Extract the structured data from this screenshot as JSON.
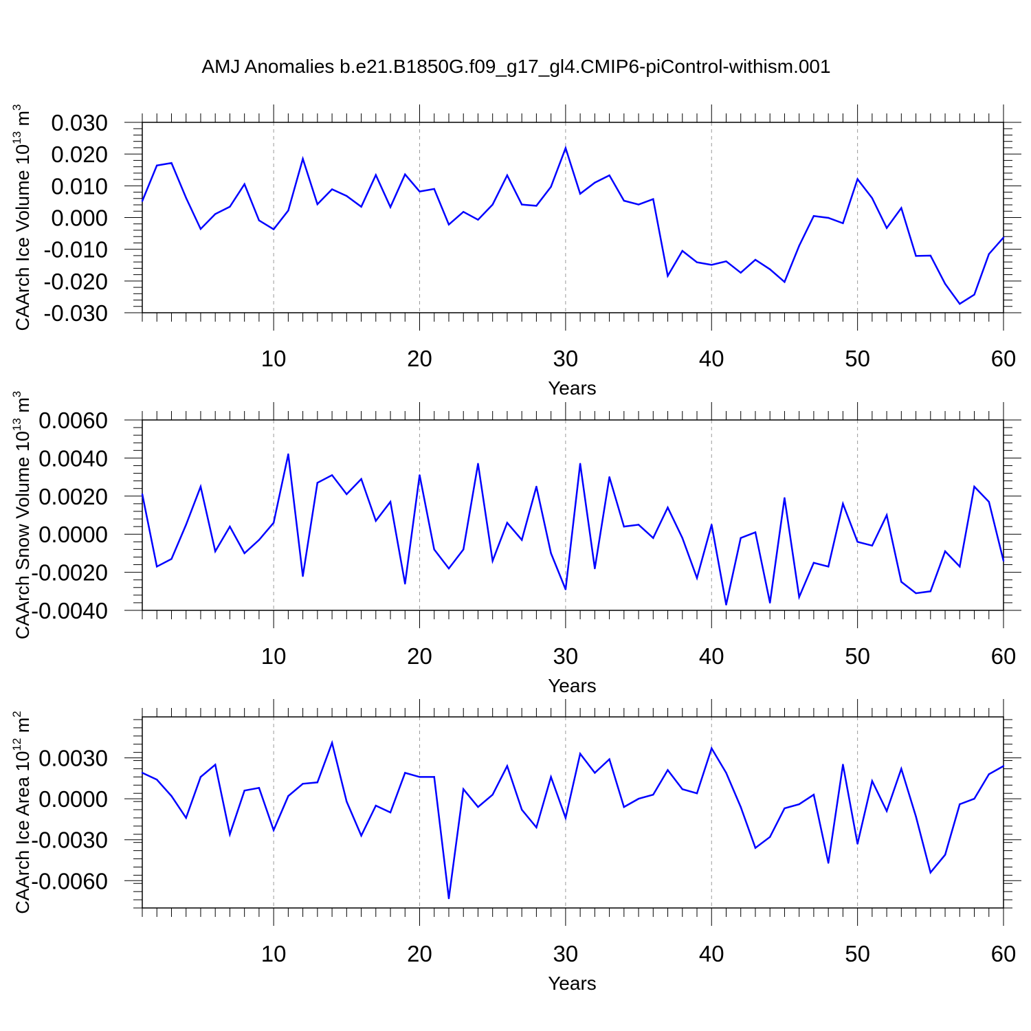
{
  "chart_data": {
    "title": "AMJ Anomalies b.e21.B1850G.f09_g17_gl4.CMIP6-piControl-withism.001",
    "line_color": "#0000ff",
    "panels": [
      {
        "type": "line",
        "ylabel": "CAArch Ice Volume",
        "ylabel_unit_base": "10",
        "ylabel_unit_exp": "13",
        "ylabel_unit_name": "m",
        "ylabel_unit_power": "3",
        "xlabel": "Years",
        "xlim": [
          1,
          60
        ],
        "ylim": [
          -0.03,
          0.03
        ],
        "x_ticks": [
          10,
          20,
          30,
          40,
          50,
          60
        ],
        "x_tick_labels": [
          "10",
          "20",
          "30",
          "40",
          "50",
          "60"
        ],
        "y_ticks": [
          0.03,
          0.02,
          0.01,
          0.0,
          -0.01,
          -0.02,
          -0.03
        ],
        "y_tick_labels": [
          "0.030",
          "0.020",
          "0.010",
          "0.000",
          "-0.010",
          "-0.020",
          "-0.030"
        ],
        "x": [
          1,
          2,
          3,
          4,
          5,
          6,
          7,
          8,
          9,
          10,
          11,
          12,
          13,
          14,
          15,
          16,
          17,
          18,
          19,
          20,
          21,
          22,
          23,
          24,
          25,
          26,
          27,
          28,
          29,
          30,
          31,
          32,
          33,
          34,
          35,
          36,
          37,
          38,
          39,
          40,
          41,
          42,
          43,
          44,
          45,
          46,
          47,
          48,
          49,
          50,
          51,
          52,
          53,
          54,
          55,
          56,
          57,
          58,
          59,
          60
        ],
        "values": [
          0.0052,
          0.0164,
          0.0172,
          0.0062,
          -0.0036,
          0.0011,
          0.0034,
          0.0105,
          -0.0009,
          -0.0037,
          0.0022,
          0.0185,
          0.0042,
          0.0089,
          0.0068,
          0.0034,
          0.0134,
          0.0033,
          0.0136,
          0.0082,
          0.009,
          -0.0022,
          0.0018,
          -0.0007,
          0.0041,
          0.0133,
          0.0041,
          0.0037,
          0.0097,
          0.0219,
          0.0075,
          0.011,
          0.0133,
          0.0053,
          0.0041,
          0.0058,
          -0.0184,
          -0.0105,
          -0.0141,
          -0.0149,
          -0.0138,
          -0.0174,
          -0.0133,
          -0.0163,
          -0.0203,
          -0.0089,
          0.0005,
          -0.0001,
          -0.0018,
          0.0121,
          0.0061,
          -0.0033,
          0.003,
          -0.0121,
          -0.012,
          -0.0209,
          -0.0272,
          -0.0243,
          -0.0115,
          -0.0063
        ]
      },
      {
        "type": "line",
        "ylabel": "CAArch Snow Volume",
        "ylabel_unit_base": "10",
        "ylabel_unit_exp": "13",
        "ylabel_unit_name": "m",
        "ylabel_unit_power": "3",
        "xlabel": "Years",
        "xlim": [
          1,
          60
        ],
        "ylim": [
          -0.004,
          0.006
        ],
        "x_ticks": [
          10,
          20,
          30,
          40,
          50,
          60
        ],
        "x_tick_labels": [
          "10",
          "20",
          "30",
          "40",
          "50",
          "60"
        ],
        "y_ticks": [
          0.006,
          0.004,
          0.002,
          0.0,
          -0.002,
          -0.004
        ],
        "y_tick_labels": [
          "0.0060",
          "0.0040",
          "0.0020",
          "0.0000",
          "-0.0020",
          "-0.0040"
        ],
        "x": [
          1,
          2,
          3,
          4,
          5,
          6,
          7,
          8,
          9,
          10,
          11,
          12,
          13,
          14,
          15,
          16,
          17,
          18,
          19,
          20,
          21,
          22,
          23,
          24,
          25,
          26,
          27,
          28,
          29,
          30,
          31,
          32,
          33,
          34,
          35,
          36,
          37,
          38,
          39,
          40,
          41,
          42,
          43,
          44,
          45,
          46,
          47,
          48,
          49,
          50,
          51,
          52,
          53,
          54,
          55,
          56,
          57,
          58,
          59,
          60
        ],
        "values": [
          0.0021,
          -0.0017,
          -0.0013,
          0.0005,
          0.0025,
          -0.0009,
          0.0004,
          -0.001,
          -0.0003,
          0.0006,
          0.0042,
          -0.0022,
          0.0027,
          0.0031,
          0.0021,
          0.0029,
          0.0007,
          0.0017,
          -0.0026,
          0.0031,
          -0.0008,
          -0.0018,
          -0.0008,
          0.0037,
          -0.0014,
          0.0006,
          -0.0003,
          0.0025,
          -0.001,
          -0.0029,
          0.0037,
          -0.0018,
          0.003,
          0.0004,
          0.0005,
          -0.0002,
          0.0014,
          -0.0002,
          -0.0023,
          0.0005,
          -0.0037,
          -0.0002,
          0.0001,
          -0.0036,
          0.0019,
          -0.0033,
          -0.0015,
          -0.0017,
          0.0016,
          -0.0004,
          -0.0006,
          0.001,
          -0.0025,
          -0.0031,
          -0.003,
          -0.0009,
          -0.0017,
          0.0025,
          0.0017,
          -0.0014
        ]
      },
      {
        "type": "line",
        "ylabel": "CAArch Ice Area",
        "ylabel_unit_base": "10",
        "ylabel_unit_exp": "12",
        "ylabel_unit_name": "m",
        "ylabel_unit_power": "2",
        "xlabel": "Years",
        "xlim": [
          1,
          60
        ],
        "ylim": [
          -0.008,
          0.006
        ],
        "x_ticks": [
          10,
          20,
          30,
          40,
          50,
          60
        ],
        "x_tick_labels": [
          "10",
          "20",
          "30",
          "40",
          "50",
          "60"
        ],
        "y_ticks": [
          0.003,
          0.0,
          -0.003,
          -0.006
        ],
        "y_tick_labels": [
          "0.0030",
          "0.0000",
          "-0.0030",
          "-0.0060"
        ],
        "x": [
          1,
          2,
          3,
          4,
          5,
          6,
          7,
          8,
          9,
          10,
          11,
          12,
          13,
          14,
          15,
          16,
          17,
          18,
          19,
          20,
          21,
          22,
          23,
          24,
          25,
          26,
          27,
          28,
          29,
          30,
          31,
          32,
          33,
          34,
          35,
          36,
          37,
          38,
          39,
          40,
          41,
          42,
          43,
          44,
          45,
          46,
          47,
          48,
          49,
          50,
          51,
          52,
          53,
          54,
          55,
          56,
          57,
          58,
          59,
          60
        ],
        "values": [
          0.0019,
          0.0014,
          0.0002,
          -0.0014,
          0.0016,
          0.0025,
          -0.0026,
          0.0006,
          0.0008,
          -0.0023,
          0.0002,
          0.0011,
          0.0012,
          0.0041,
          -0.0002,
          -0.0027,
          -0.0005,
          -0.001,
          0.0019,
          0.0016,
          0.0016,
          -0.0073,
          0.0007,
          -0.0006,
          0.0003,
          0.0024,
          -0.0008,
          -0.0021,
          0.0016,
          -0.0014,
          0.0033,
          0.0019,
          0.0029,
          -0.0006,
          0.0,
          0.0003,
          0.0021,
          0.0007,
          0.0004,
          0.0037,
          0.0019,
          -0.0006,
          -0.0036,
          -0.0028,
          -0.0007,
          -0.0004,
          0.0003,
          -0.0047,
          0.0025,
          -0.0033,
          0.0013,
          -0.0009,
          0.0022,
          -0.0013,
          -0.0054,
          -0.0041,
          -0.0004,
          0.0,
          0.0018,
          0.0024
        ]
      }
    ]
  }
}
